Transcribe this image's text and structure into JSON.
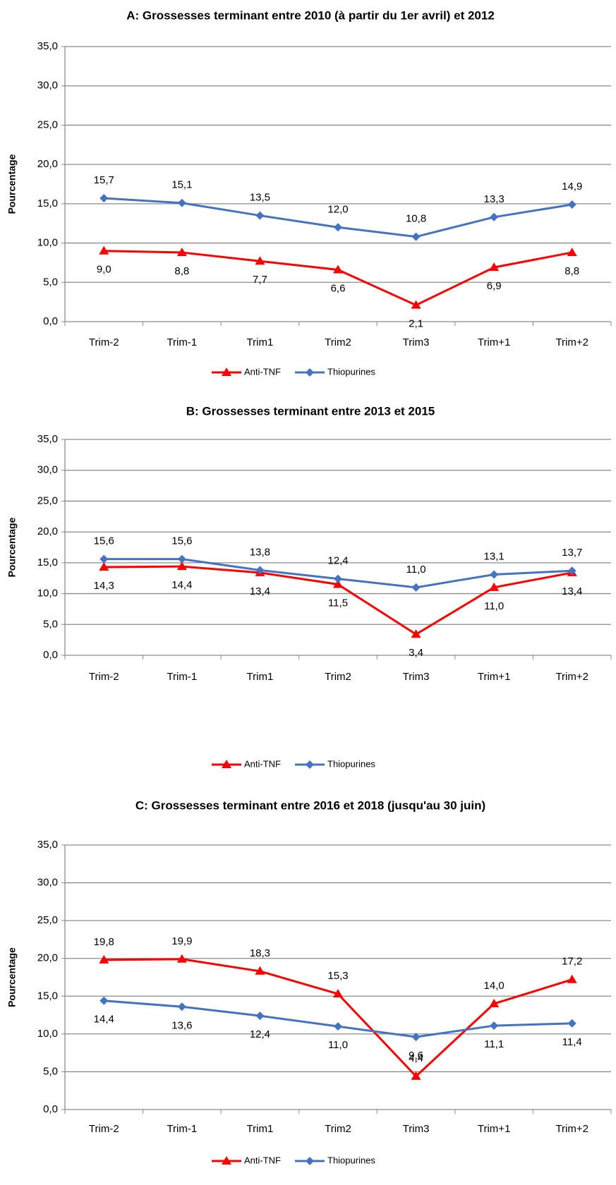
{
  "chart_data": [
    {
      "type": "line",
      "title": "A: Grossesses terminant entre 2010 (à partir du 1er avril) et 2012",
      "y_label": "Pourcentage",
      "categories": [
        "Trim-2",
        "Trim-1",
        "Trim1",
        "Trim2",
        "Trim3",
        "Trim+1",
        "Trim+2"
      ],
      "series": [
        {
          "name": "Anti-TNF",
          "color": "#ff0000",
          "marker": "triangle",
          "values": [
            9.0,
            8.8,
            7.7,
            6.6,
            2.1,
            6.9,
            8.8
          ],
          "value_labels": [
            "9,0",
            "8,8",
            "7,7",
            "6,6",
            "2,1",
            "6,9",
            "8,8"
          ]
        },
        {
          "name": "Thiopurines",
          "color": "#4472c4",
          "marker": "diamond",
          "values": [
            15.7,
            15.1,
            13.5,
            12.0,
            10.8,
            13.3,
            14.9
          ],
          "value_labels": [
            "15,7",
            "15,1",
            "13,5",
            "12,0",
            "10,8",
            "13,3",
            "14,9"
          ]
        }
      ],
      "ylim": [
        0,
        35
      ],
      "yticks": [
        {
          "value": 0,
          "label": "0,0"
        },
        {
          "value": 5,
          "label": "5,0"
        },
        {
          "value": 10,
          "label": "10,0"
        },
        {
          "value": 15,
          "label": "15,0"
        },
        {
          "value": 20,
          "label": "20,0"
        },
        {
          "value": 25,
          "label": "25,0"
        },
        {
          "value": 30,
          "label": "30,0"
        },
        {
          "value": 35,
          "label": "35,0"
        }
      ],
      "grid": true,
      "legend": "bottom"
    },
    {
      "type": "line",
      "title": "B: Grossesses terminant entre 2013 et 2015",
      "y_label": "Pourcentage",
      "categories": [
        "Trim-2",
        "Trim-1",
        "Trim1",
        "Trim2",
        "Trim3",
        "Trim+1",
        "Trim+2"
      ],
      "series": [
        {
          "name": "Anti-TNF",
          "color": "#ff0000",
          "marker": "triangle",
          "values": [
            14.3,
            14.4,
            13.4,
            11.5,
            3.4,
            11.0,
            13.4
          ],
          "value_labels": [
            "14,3",
            "14,4",
            "13,4",
            "11,5",
            "3,4",
            "11,0",
            "13,4"
          ]
        },
        {
          "name": "Thiopurines",
          "color": "#4472c4",
          "marker": "diamond",
          "values": [
            15.6,
            15.6,
            13.8,
            12.4,
            11.0,
            13.1,
            13.7
          ],
          "value_labels": [
            "15,6",
            "15,6",
            "13,8",
            "12,4",
            "11,0",
            "13,1",
            "13,7"
          ]
        }
      ],
      "ylim": [
        0,
        35
      ],
      "yticks": [
        {
          "value": 0,
          "label": "0,0"
        },
        {
          "value": 5,
          "label": "5,0"
        },
        {
          "value": 10,
          "label": "10,0"
        },
        {
          "value": 15,
          "label": "15,0"
        },
        {
          "value": 20,
          "label": "20,0"
        },
        {
          "value": 25,
          "label": "25,0"
        },
        {
          "value": 30,
          "label": "30,0"
        },
        {
          "value": 35,
          "label": "35,0"
        }
      ],
      "grid": true,
      "legend": "bottom"
    },
    {
      "type": "line",
      "title": "C: Grossesses terminant entre 2016 et 2018 (jusqu'au 30 juin)",
      "y_label": "Pourcentage",
      "categories": [
        "Trim-2",
        "Trim-1",
        "Trim1",
        "Trim2",
        "Trim3",
        "Trim+1",
        "Trim+2"
      ],
      "series": [
        {
          "name": "Anti-TNF",
          "color": "#ff0000",
          "marker": "triangle",
          "values": [
            19.8,
            19.9,
            18.3,
            15.3,
            4.4,
            14.0,
            17.2
          ],
          "value_labels": [
            "19,8",
            "19,9",
            "18,3",
            "15,3",
            "4,4",
            "14,0",
            "17,2"
          ]
        },
        {
          "name": "Thiopurines",
          "color": "#4472c4",
          "marker": "diamond",
          "values": [
            14.4,
            13.6,
            12.4,
            11.0,
            9.6,
            11.1,
            11.4
          ],
          "value_labels": [
            "14,4",
            "13,6",
            "12,4",
            "11,0",
            "9,6",
            "11,1",
            "11,4"
          ]
        }
      ],
      "ylim": [
        0,
        35
      ],
      "yticks": [
        {
          "value": 0,
          "label": "0,0"
        },
        {
          "value": 5,
          "label": "5,0"
        },
        {
          "value": 10,
          "label": "10,0"
        },
        {
          "value": 15,
          "label": "15,0"
        },
        {
          "value": 20,
          "label": "20,0"
        },
        {
          "value": 25,
          "label": "25,0"
        },
        {
          "value": 30,
          "label": "30,0"
        },
        {
          "value": 35,
          "label": "35,0"
        }
      ],
      "grid": true,
      "legend": "bottom"
    }
  ]
}
